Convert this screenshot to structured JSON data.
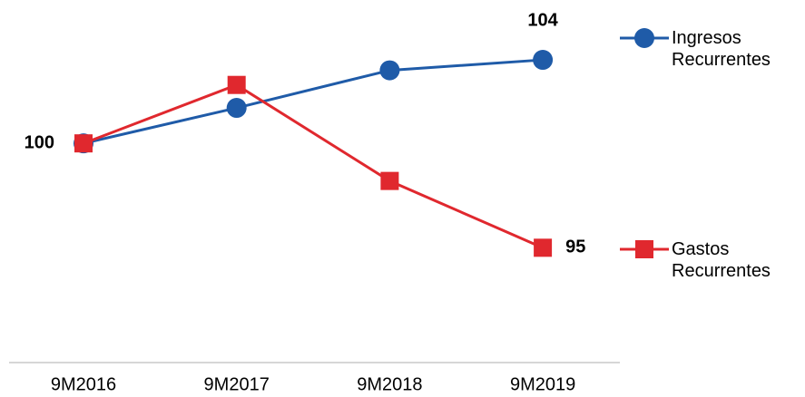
{
  "chart_data": {
    "type": "line",
    "categories": [
      "9M2016",
      "9M2017",
      "9M2018",
      "9M2019"
    ],
    "series": [
      {
        "name": "Ingresos Recurrentes",
        "color": "#1f5ba8",
        "marker": "circle",
        "values": [
          100,
          101.7,
          103.5,
          104
        ]
      },
      {
        "name": "Gastos Recurrentes",
        "color": "#e0282e",
        "marker": "square",
        "values": [
          100,
          102.8,
          98.2,
          95
        ]
      }
    ],
    "ylim": [
      89.5,
      106
    ],
    "grid": false,
    "legend": "right"
  }
}
